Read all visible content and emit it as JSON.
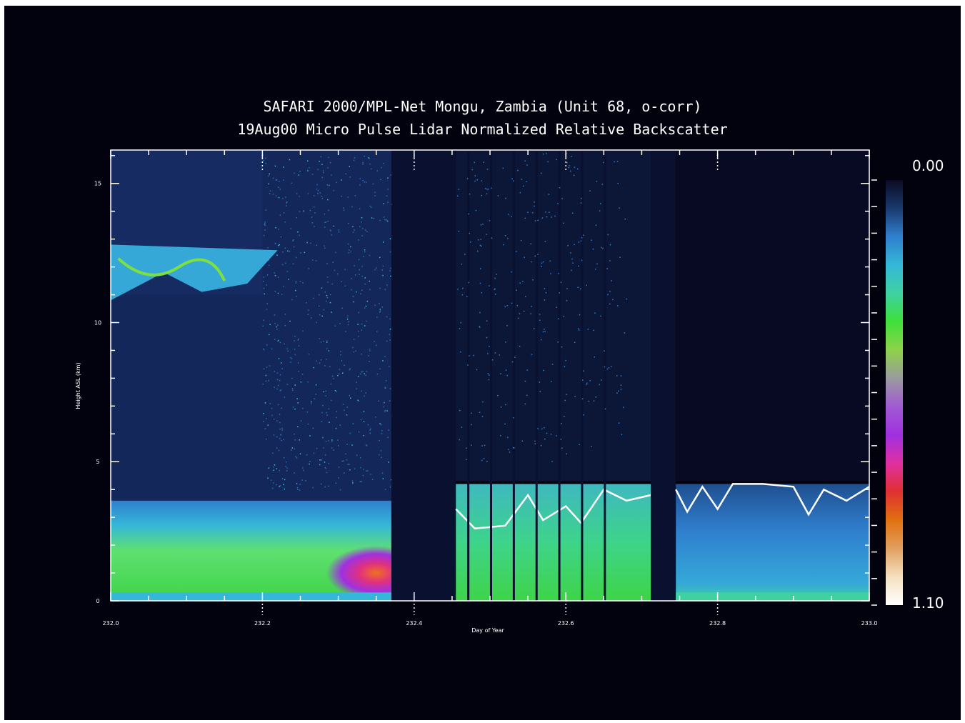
{
  "chart_data": {
    "type": "heatmap",
    "title": "SAFARI 2000/MPL-Net Mongu, Zambia (Unit 68, o-corr)",
    "subtitle": "19Aug00 Micro Pulse Lidar Normalized Relative Backscatter",
    "xlabel": "Day of Year",
    "ylabel": "Height ASL (km)",
    "xlim": [
      232.0,
      233.0
    ],
    "ylim": [
      0,
      16.2
    ],
    "x_ticks": [
      "232.0",
      "232.2",
      "232.4",
      "232.6",
      "232.8",
      "233.0"
    ],
    "y_ticks": [
      "0",
      "5",
      "10",
      "15"
    ],
    "colorbar": {
      "min_label": "0.00",
      "max_label": "1.10",
      "min": 0.0,
      "max": 1.1,
      "colors": [
        "#0b0b22",
        "#1a3a6e",
        "#2f7fce",
        "#35b8d8",
        "#3fd1a0",
        "#3ee03a",
        "#8ed24a",
        "#9a9aa0",
        "#a05ad2",
        "#a030e0",
        "#e030a0",
        "#e03030",
        "#e07010",
        "#e0a060",
        "#f5e0c0",
        "#ffffff"
      ]
    },
    "data_gaps": [
      [
        232.37,
        232.455
      ],
      [
        232.712,
        232.745
      ]
    ],
    "segments": [
      {
        "x": [
          232.0,
          232.37
        ],
        "boundary_layer_top_km": 3.6,
        "cirrus_km": [
          10.8,
          12.8
        ],
        "cirrus_x": [
          232.0,
          232.22
        ]
      },
      {
        "x": [
          232.455,
          232.712
        ],
        "cloud_top_km": [
          2.6,
          4.2
        ]
      },
      {
        "x": [
          232.745,
          233.0
        ],
        "cloud_top_km": [
          3.0,
          4.2
        ]
      }
    ],
    "grid": false,
    "legend": "colorbar-right"
  }
}
